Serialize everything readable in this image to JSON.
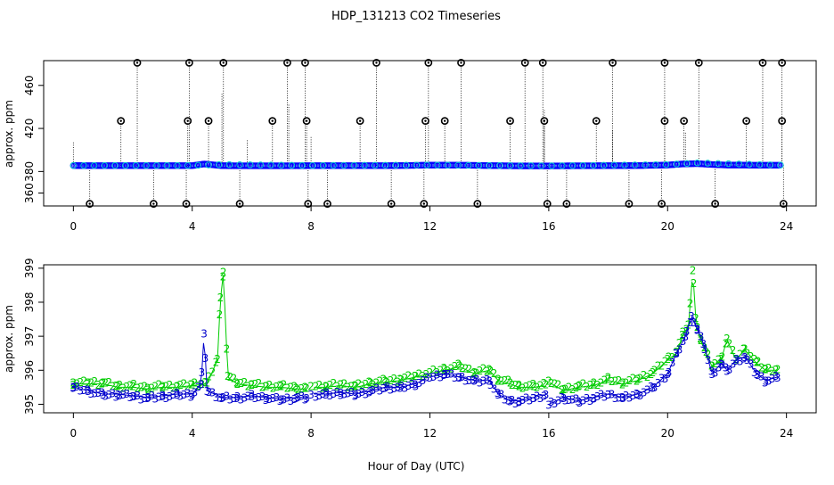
{
  "chart_data": [
    {
      "type": "scatter",
      "title": "HDP_131213  CO2 Timeseries",
      "ylabel": "approx. ppm",
      "xlabel": "",
      "xlim": [
        -1,
        25
      ],
      "ylim": [
        348,
        483
      ],
      "xticks": [
        "0",
        "4",
        "8",
        "12",
        "16",
        "20",
        "24"
      ],
      "yticks": [
        "360",
        "380",
        "420",
        "460"
      ],
      "grid": false,
      "baseline_series": [
        {
          "name": "",
          "color": "#0000ff",
          "x": [
            0.0,
            1.0,
            2.0,
            3.0,
            3.5,
            4.0,
            4.4,
            5.0,
            6.0,
            7.0,
            8.0,
            9.0,
            10.0,
            11.0,
            12.0,
            13.0,
            14.0,
            15.0,
            16.0,
            17.0,
            18.0,
            19.0,
            20.0,
            20.5,
            21.0,
            21.5,
            22.0,
            22.5,
            23.0,
            23.8
          ],
          "y": [
            385.5,
            385.4,
            385.4,
            385.4,
            385.4,
            385.4,
            387.0,
            385.4,
            385.3,
            385.3,
            385.4,
            385.4,
            385.4,
            385.5,
            385.9,
            385.9,
            385.5,
            385.2,
            385.2,
            385.3,
            385.4,
            385.5,
            386.0,
            387.0,
            387.3,
            386.5,
            386.0,
            386.0,
            385.8,
            385.8
          ]
        },
        {
          "name": "",
          "color": "#00cccc",
          "x": [
            0.0,
            4.0,
            5.0,
            8.0,
            12.0,
            16.0,
            20.0,
            21.0,
            23.8
          ],
          "y": [
            385.6,
            385.6,
            386.5,
            385.6,
            386.0,
            385.3,
            386.5,
            388.0,
            386.0
          ]
        }
      ],
      "outliers_high_x": [
        2.15,
        3.9,
        5.05,
        7.2,
        7.8,
        10.2,
        11.95,
        13.05,
        15.2,
        15.8,
        18.15,
        19.9,
        21.05,
        23.2,
        23.85
      ],
      "outliers_high_y": 481,
      "outliers_mid_x": [
        1.6,
        3.85,
        4.55,
        6.7,
        7.85,
        9.65,
        11.85,
        12.5,
        14.7,
        15.85,
        17.6,
        19.9,
        20.55,
        22.65,
        23.85
      ],
      "outliers_mid_y": 427,
      "outliers_low_x": [
        0.55,
        2.7,
        3.8,
        5.6,
        7.9,
        8.55,
        10.7,
        11.8,
        13.6,
        15.95,
        16.6,
        18.7,
        19.8,
        21.6,
        23.9
      ],
      "outliers_low_y": 350,
      "spike_x": [
        0.0,
        5.0,
        5.85,
        7.25,
        8.0,
        15.85,
        18.15,
        20.6
      ],
      "spike_top": [
        407,
        452,
        409,
        442,
        412,
        437,
        418,
        416
      ]
    },
    {
      "type": "scatter",
      "title": "",
      "ylabel": "approx. ppm",
      "xlabel": "Hour of Day (UTC)",
      "xlim": [
        -1,
        25
      ],
      "ylim": [
        394.75,
        399.1
      ],
      "xticks": [
        "0",
        "4",
        "8",
        "12",
        "16",
        "20",
        "24"
      ],
      "yticks": [
        "395",
        "396",
        "397",
        "398",
        "399"
      ],
      "grid": false,
      "series": [
        {
          "name": "2",
          "marker": "2",
          "color": "#00cc00",
          "x": [
            0.0,
            0.5,
            1.0,
            1.5,
            2.0,
            2.5,
            3.0,
            3.5,
            4.0,
            4.5,
            4.85,
            4.95,
            5.05,
            5.2,
            5.5,
            6.0,
            6.5,
            7.0,
            7.5,
            7.85,
            8.0,
            8.5,
            9.0,
            9.5,
            10.0,
            10.5,
            11.0,
            11.5,
            12.0,
            12.5,
            13.0,
            13.5,
            14.0,
            14.3,
            14.7,
            15.0,
            15.5,
            15.9,
            16.0,
            16.5,
            17.0,
            17.5,
            18.0,
            18.5,
            19.0,
            19.5,
            20.0,
            20.3,
            20.5,
            20.7,
            20.85,
            20.95,
            21.1,
            21.3,
            21.5,
            21.8,
            22.0,
            22.3,
            22.6,
            23.0,
            23.3,
            23.7
          ],
          "y": [
            395.6,
            395.6,
            395.6,
            395.5,
            395.5,
            395.45,
            395.5,
            395.5,
            395.55,
            395.6,
            396.3,
            398.1,
            398.85,
            395.8,
            395.6,
            395.55,
            395.5,
            395.5,
            395.45,
            395.45,
            395.5,
            395.5,
            395.55,
            395.5,
            395.6,
            395.65,
            395.7,
            395.8,
            395.9,
            396.0,
            396.1,
            395.9,
            396.0,
            395.7,
            395.6,
            395.5,
            395.5,
            395.55,
            395.65,
            395.4,
            395.5,
            395.55,
            395.7,
            395.6,
            395.7,
            395.9,
            396.3,
            396.5,
            397.0,
            397.3,
            398.9,
            397.5,
            396.9,
            396.5,
            396.1,
            396.3,
            396.9,
            396.3,
            396.6,
            396.2,
            396.0,
            396.0
          ]
        },
        {
          "name": "3",
          "marker": "3",
          "color": "#0000cc",
          "x": [
            0.0,
            0.5,
            1.0,
            1.5,
            2.0,
            2.5,
            3.0,
            3.5,
            4.0,
            4.3,
            4.4,
            4.5,
            5.0,
            5.5,
            6.0,
            6.5,
            7.0,
            7.5,
            7.85,
            8.0,
            8.5,
            9.0,
            9.5,
            10.0,
            10.5,
            11.0,
            11.5,
            12.0,
            12.5,
            13.0,
            13.5,
            14.0,
            14.3,
            14.7,
            15.0,
            15.5,
            15.9,
            16.0,
            16.5,
            17.0,
            17.5,
            18.0,
            18.5,
            19.0,
            19.5,
            20.0,
            20.3,
            20.6,
            20.8,
            21.0,
            21.2,
            21.5,
            21.8,
            22.0,
            22.3,
            22.6,
            23.0,
            23.3,
            23.7
          ],
          "y": [
            395.5,
            395.4,
            395.3,
            395.3,
            395.25,
            395.2,
            395.25,
            395.3,
            395.3,
            395.6,
            397.1,
            395.4,
            395.2,
            395.2,
            395.25,
            395.2,
            395.15,
            395.2,
            395.2,
            395.3,
            395.3,
            395.35,
            395.3,
            395.4,
            395.5,
            395.5,
            395.6,
            395.8,
            395.9,
            395.8,
            395.7,
            395.7,
            395.3,
            395.1,
            395.1,
            395.2,
            395.3,
            395.0,
            395.2,
            395.1,
            395.2,
            395.3,
            395.2,
            395.3,
            395.5,
            395.9,
            396.5,
            397.0,
            397.6,
            397.2,
            396.8,
            395.9,
            396.2,
            396.0,
            396.3,
            396.4,
            395.9,
            395.7,
            395.8
          ]
        }
      ]
    }
  ]
}
